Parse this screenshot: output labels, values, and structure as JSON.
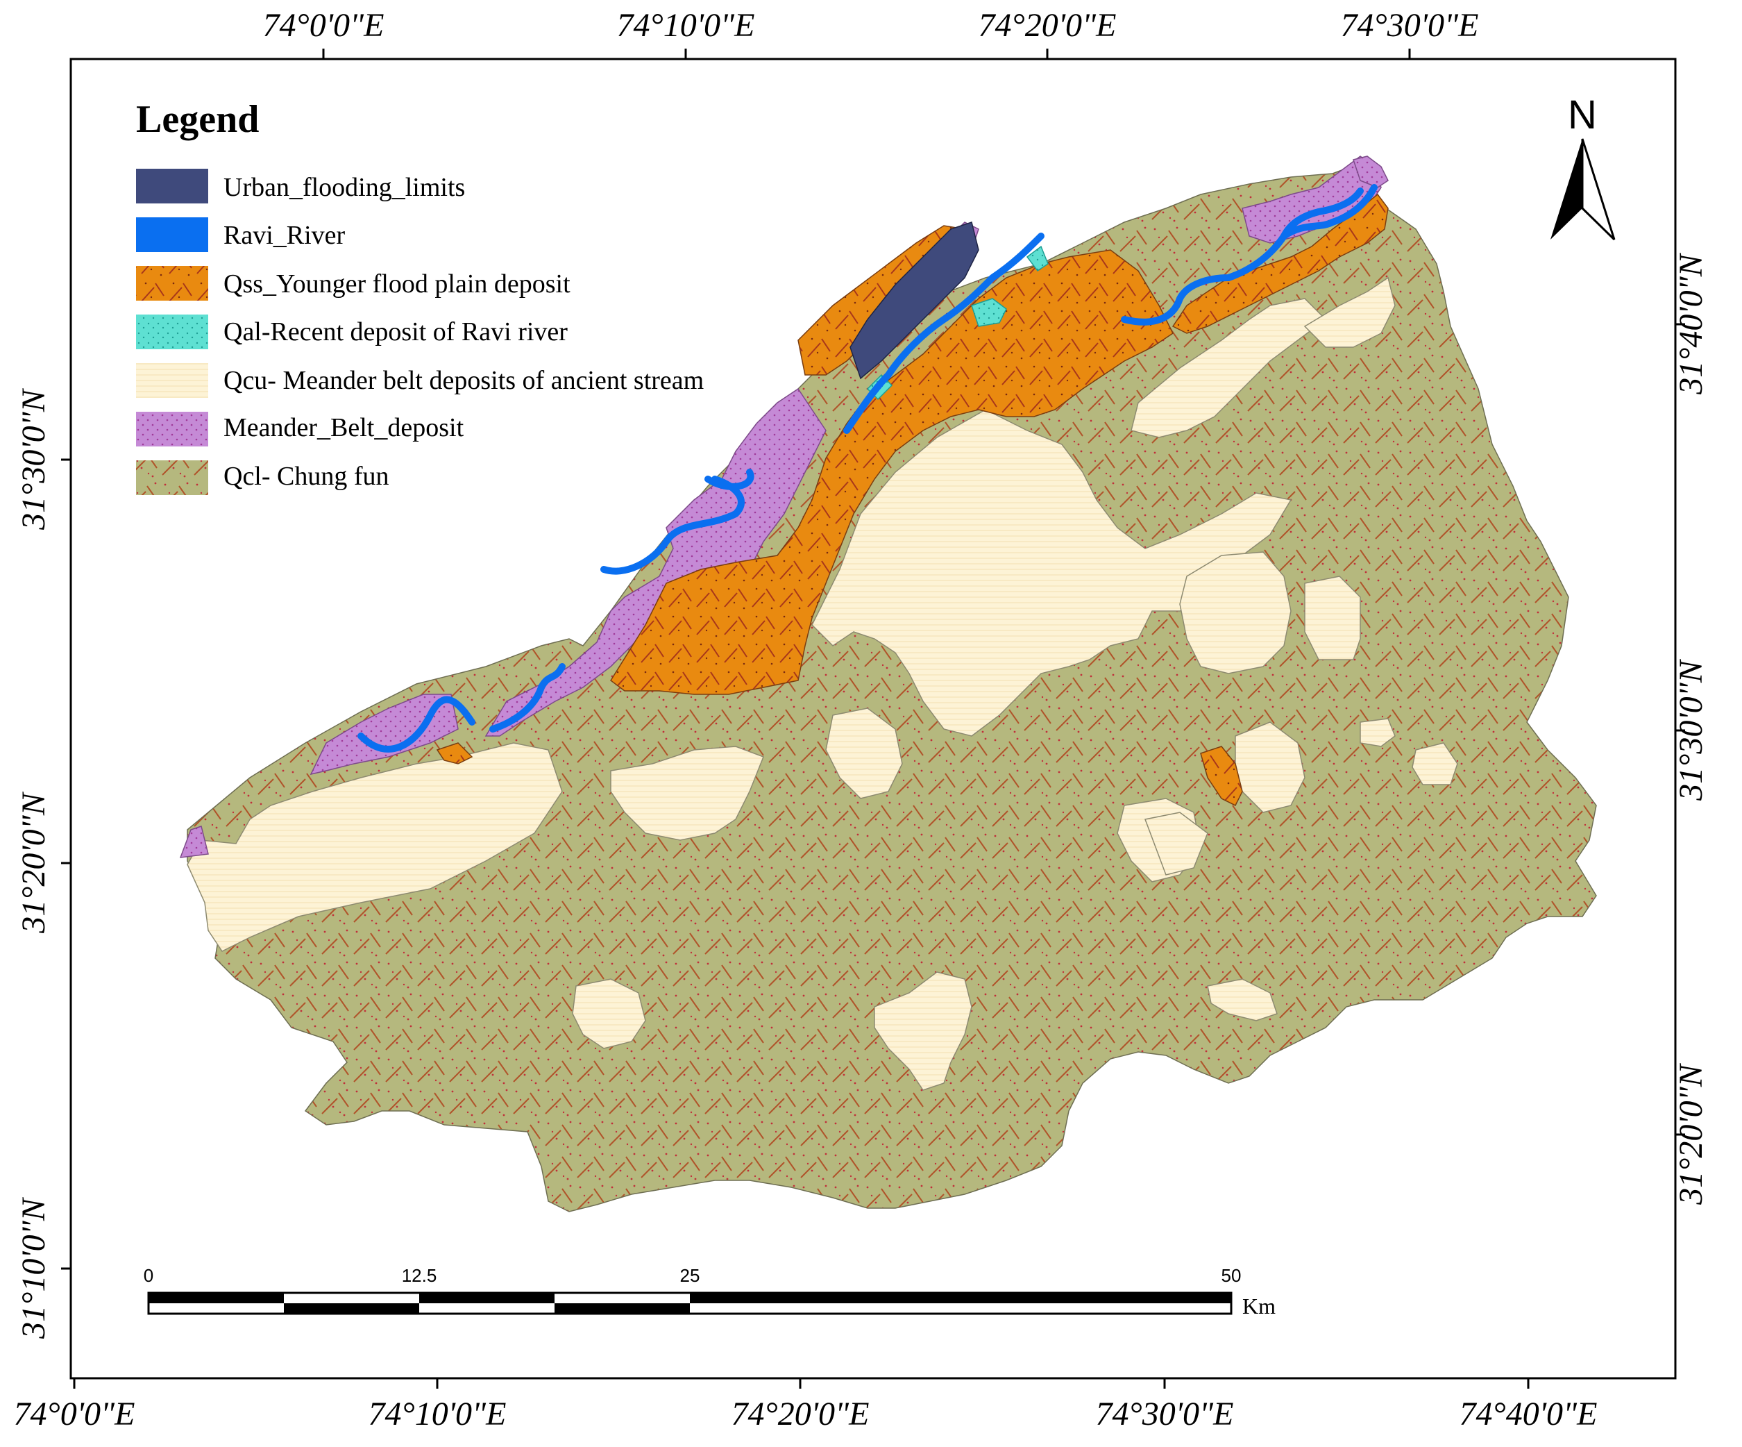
{
  "graticule": {
    "top_labels": [
      "74°0'0\"E",
      "74°10'0\"E",
      "74°20'0\"E",
      "74°30'0\"E"
    ],
    "bottom_labels": [
      "74°0'0\"E",
      "74°10'0\"E",
      "74°20'0\"E",
      "74°30'0\"E",
      "74°40'0\"E"
    ],
    "left_labels": [
      "31°30'0\"N",
      "31°20'0\"N",
      "31°10'0\"N"
    ],
    "right_labels": [
      "31°40'0\"N",
      "31°30'0\"N",
      "31°20'0\"N"
    ]
  },
  "legend": {
    "title": "Legend",
    "items": [
      {
        "label": "Urban_flooding_limits",
        "color": "#3f4a7c"
      },
      {
        "label": "Ravi_River",
        "color": "#0a6ff0"
      },
      {
        "label": "Qss_Younger flood plain deposit",
        "color": "#e98a10"
      },
      {
        "label": "Qal-Recent deposit of Ravi river",
        "color": "#5ee0d2"
      },
      {
        "label": "Qcu- Meander belt deposits of ancient stream",
        "color": "#fdf3d6"
      },
      {
        "label": "Meander_Belt_deposit",
        "color": "#c58ad6"
      },
      {
        "label": "Qcl- Chung fun",
        "color": "#b5b87e"
      }
    ]
  },
  "north_arrow": {
    "label": "N"
  },
  "scale_bar": {
    "ticks": [
      "0",
      "12.5",
      "25",
      "50"
    ],
    "unit": "Km"
  },
  "colors": {
    "chung_fun": "#b5b87e",
    "younger_flood_plain": "#e98a10",
    "meander_ancient": "#fdf3d6",
    "meander_belt": "#c58ad6",
    "river": "#0a6ff0",
    "urban": "#3f4a7c",
    "recent_deposit": "#5ee0d2"
  }
}
